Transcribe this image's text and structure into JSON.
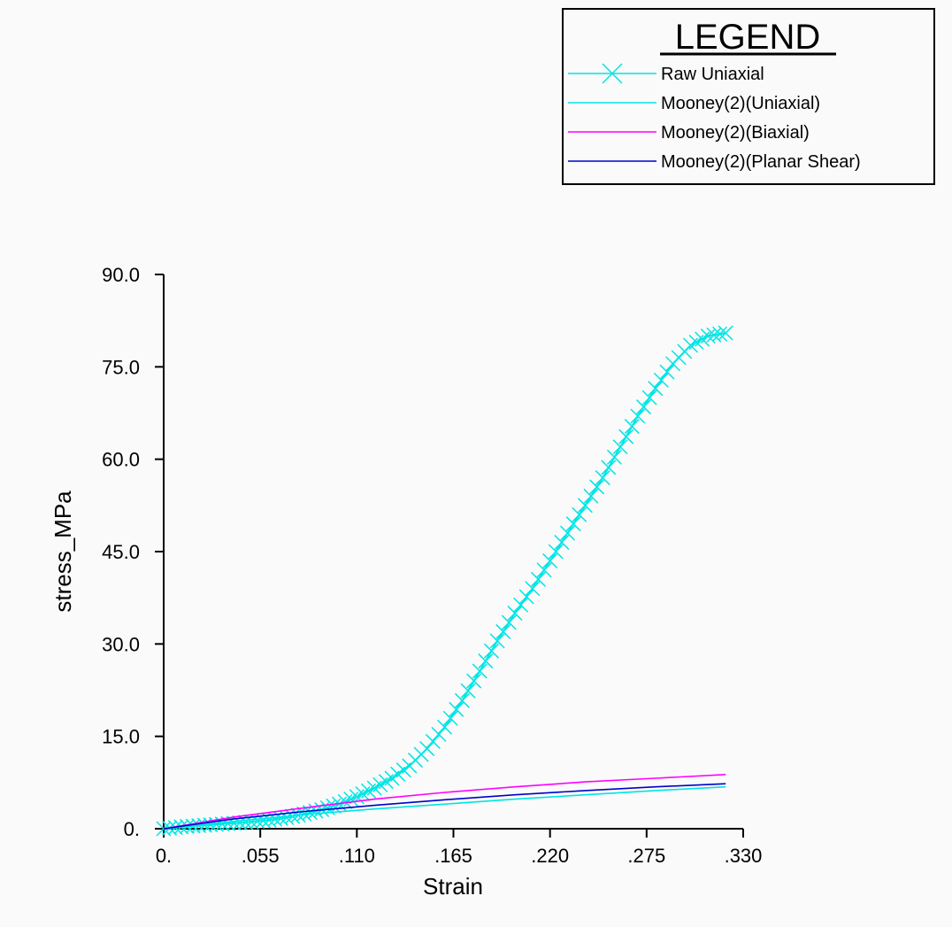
{
  "chart_data": {
    "type": "line",
    "xlabel": "Strain",
    "ylabel": "stress_MPa",
    "xlim": [
      0,
      0.33
    ],
    "ylim": [
      0,
      90
    ],
    "x_ticks": [
      {
        "value": 0,
        "label": "0."
      },
      {
        "value": 0.055,
        "label": ".055"
      },
      {
        "value": 0.11,
        "label": ".110"
      },
      {
        "value": 0.165,
        "label": ".165"
      },
      {
        "value": 0.22,
        "label": ".220"
      },
      {
        "value": 0.275,
        "label": ".275"
      },
      {
        "value": 0.33,
        "label": ".330"
      }
    ],
    "y_ticks": [
      {
        "value": 0,
        "label": "0."
      },
      {
        "value": 15,
        "label": "15.0"
      },
      {
        "value": 30,
        "label": "30.0"
      },
      {
        "value": 45,
        "label": "45.0"
      },
      {
        "value": 60,
        "label": "60.0"
      },
      {
        "value": 75,
        "label": "75.0"
      },
      {
        "value": 90,
        "label": "90.0"
      }
    ],
    "grid": false,
    "legend": {
      "title": "LEGEND",
      "position": "top-right"
    },
    "series": [
      {
        "name": "Raw Uniaxial",
        "color": "#00e5e5",
        "marker": "x",
        "x": [
          0,
          0.01,
          0.02,
          0.03,
          0.04,
          0.05,
          0.06,
          0.07,
          0.08,
          0.09,
          0.1,
          0.11,
          0.12,
          0.13,
          0.14,
          0.15,
          0.16,
          0.17,
          0.18,
          0.19,
          0.2,
          0.21,
          0.22,
          0.23,
          0.24,
          0.25,
          0.26,
          0.27,
          0.28,
          0.29,
          0.3,
          0.31,
          0.32
        ],
        "y": [
          0,
          0.3,
          0.5,
          0.7,
          0.9,
          1.1,
          1.4,
          1.8,
          2.4,
          3.1,
          4.0,
          5.2,
          6.6,
          8.2,
          10.2,
          13.0,
          16.5,
          20.8,
          25.6,
          30.5,
          35.0,
          39.0,
          43.5,
          48.0,
          52.5,
          57.0,
          62.0,
          67.0,
          71.5,
          75.5,
          78.5,
          80.0,
          80.5
        ]
      },
      {
        "name": "Mooney(2)(Uniaxial)",
        "color": "#00e5e5",
        "marker": "none",
        "x": [
          0,
          0.04,
          0.08,
          0.12,
          0.16,
          0.2,
          0.24,
          0.28,
          0.32
        ],
        "y": [
          0,
          1.2,
          2.3,
          3.2,
          4.0,
          4.8,
          5.5,
          6.2,
          6.8
        ]
      },
      {
        "name": "Mooney(2)(Biaxial)",
        "color": "#ff00ff",
        "marker": "none",
        "x": [
          0,
          0.04,
          0.08,
          0.12,
          0.16,
          0.2,
          0.24,
          0.28,
          0.32
        ],
        "y": [
          0,
          1.9,
          3.4,
          4.8,
          5.9,
          6.8,
          7.6,
          8.2,
          8.8
        ]
      },
      {
        "name": "Mooney(2)(Planar Shear)",
        "color": "#0000cc",
        "marker": "none",
        "x": [
          0,
          0.04,
          0.08,
          0.12,
          0.16,
          0.2,
          0.24,
          0.28,
          0.32
        ],
        "y": [
          0,
          1.6,
          2.8,
          3.8,
          4.7,
          5.5,
          6.2,
          6.8,
          7.3
        ]
      }
    ]
  }
}
